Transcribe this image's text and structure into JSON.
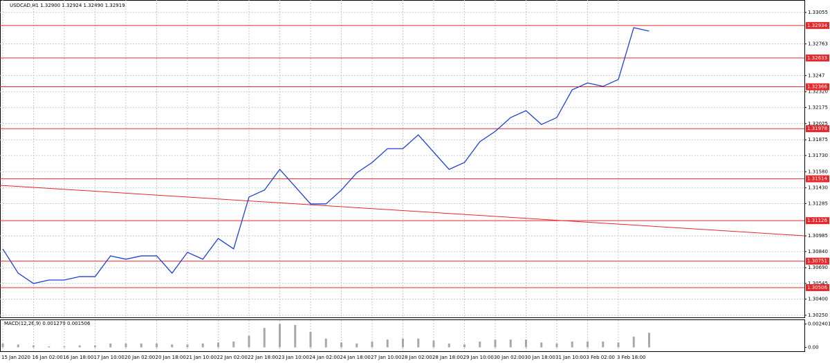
{
  "chart_data": {
    "type": "line",
    "title": "USDCAD,H1  1.32900 1.32924 1.32890 1.32919",
    "categories": [
      "15 Jan 2020",
      null,
      "16 Jan 02:00",
      null,
      "16 Jan 18:00",
      null,
      "17 Jan 10:00",
      null,
      "20 Jan 02:00",
      null,
      "20 Jan 18:00",
      null,
      "21 Jan 10:00",
      null,
      "22 Jan 02:00",
      null,
      "22 Jan 18:00",
      null,
      "23 Jan 10:00",
      null,
      "24 Jan 02:00",
      null,
      "24 Jan 18:00",
      null,
      "27 Jan 10:00",
      null,
      "28 Jan 02:00",
      null,
      "28 Jan 18:00",
      null,
      "29 Jan 10:00",
      null,
      "30 Jan 02:00",
      null,
      "30 Jan 18:00",
      null,
      "31 Jan 10:00",
      null,
      "3 Feb 02:00",
      null,
      "3 Feb 18:00",
      null,
      null,
      null,
      null,
      null,
      null,
      null,
      null,
      null,
      null,
      null
    ],
    "series": [
      {
        "name": "USDCAD",
        "color": "#1c3fd6",
        "values": [
          1.30865,
          1.3064,
          1.30544,
          1.30576,
          1.30576,
          1.30608,
          1.30608,
          1.308,
          1.30769,
          1.308,
          1.308,
          1.3064,
          1.30833,
          1.30769,
          1.30961,
          1.30865,
          1.31345,
          1.31409,
          1.31601,
          1.31441,
          1.31281,
          1.31281,
          1.31409,
          1.31569,
          1.31665,
          1.31793,
          1.31793,
          1.31921,
          1.31761,
          1.31601,
          1.31665,
          1.31857,
          1.31953,
          1.32081,
          1.32145,
          1.32017,
          1.32081,
          1.32338,
          1.32402,
          1.3237,
          1.32434,
          1.32914,
          1.32882,
          null,
          null,
          null,
          null,
          null,
          null,
          null,
          null,
          null
        ]
      }
    ],
    "ylim": [
      1.30224,
      1.3317
    ],
    "yticks": [
      1.33055,
      1.32763,
      1.3247,
      {
        "value": 1.3232,
        "label": "1.32320"
      },
      1.32175,
      1.32025,
      1.31875,
      {
        "value": 1.3173,
        "label": "1.31730"
      },
      {
        "value": 1.3158,
        "label": "1.31580"
      },
      {
        "value": 1.3143,
        "label": "1.31430"
      },
      1.31285,
      1.30985,
      {
        "value": 1.3084,
        "label": "1.30840"
      },
      {
        "value": 1.3069,
        "label": "1.30690"
      },
      1.30545,
      {
        "value": 1.304,
        "label": "1.30400"
      },
      {
        "value": 1.3025,
        "label": "1.30250"
      }
    ],
    "grid": true,
    "levels": [
      1.32934,
      1.32633,
      1.32366,
      1.31978,
      1.31514,
      1.31126,
      1.30751,
      1.30506
    ],
    "level_color": "#e8262a",
    "trendline": [
      1.31454,
      1.30986
    ],
    "indicator": {
      "type": "bar",
      "title": "MACD(12,26,9) 0.001279 0.001506",
      "color": "#a8a8a8",
      "values": [
        0.0004,
        0.0003,
        0.0002,
        0.0001,
        0.0001,
        0.0002,
        0.0002,
        0.0004,
        0.0004,
        0.0004,
        0.0004,
        0.0003,
        0.0003,
        0.0004,
        0.0005,
        0.0006,
        0.0012,
        0.002,
        0.0024,
        0.0023,
        0.0016,
        0.0009,
        0.0005,
        0.0004,
        0.0006,
        0.0008,
        0.0009,
        0.0009,
        0.0007,
        0.0004,
        0.0003,
        0.0006,
        0.0008,
        0.0008,
        0.0008,
        0.0005,
        0.0004,
        0.0006,
        0.0006,
        0.0006,
        0.0005,
        0.0011,
        0.0015,
        null,
        null,
        null,
        null,
        null,
        null,
        null,
        null,
        null
      ],
      "ylim": [
        -0.0004,
        0.0028
      ],
      "yticks": [
        0.002401,
        {
          "value": 0,
          "label": "0.00"
        }
      ]
    }
  }
}
